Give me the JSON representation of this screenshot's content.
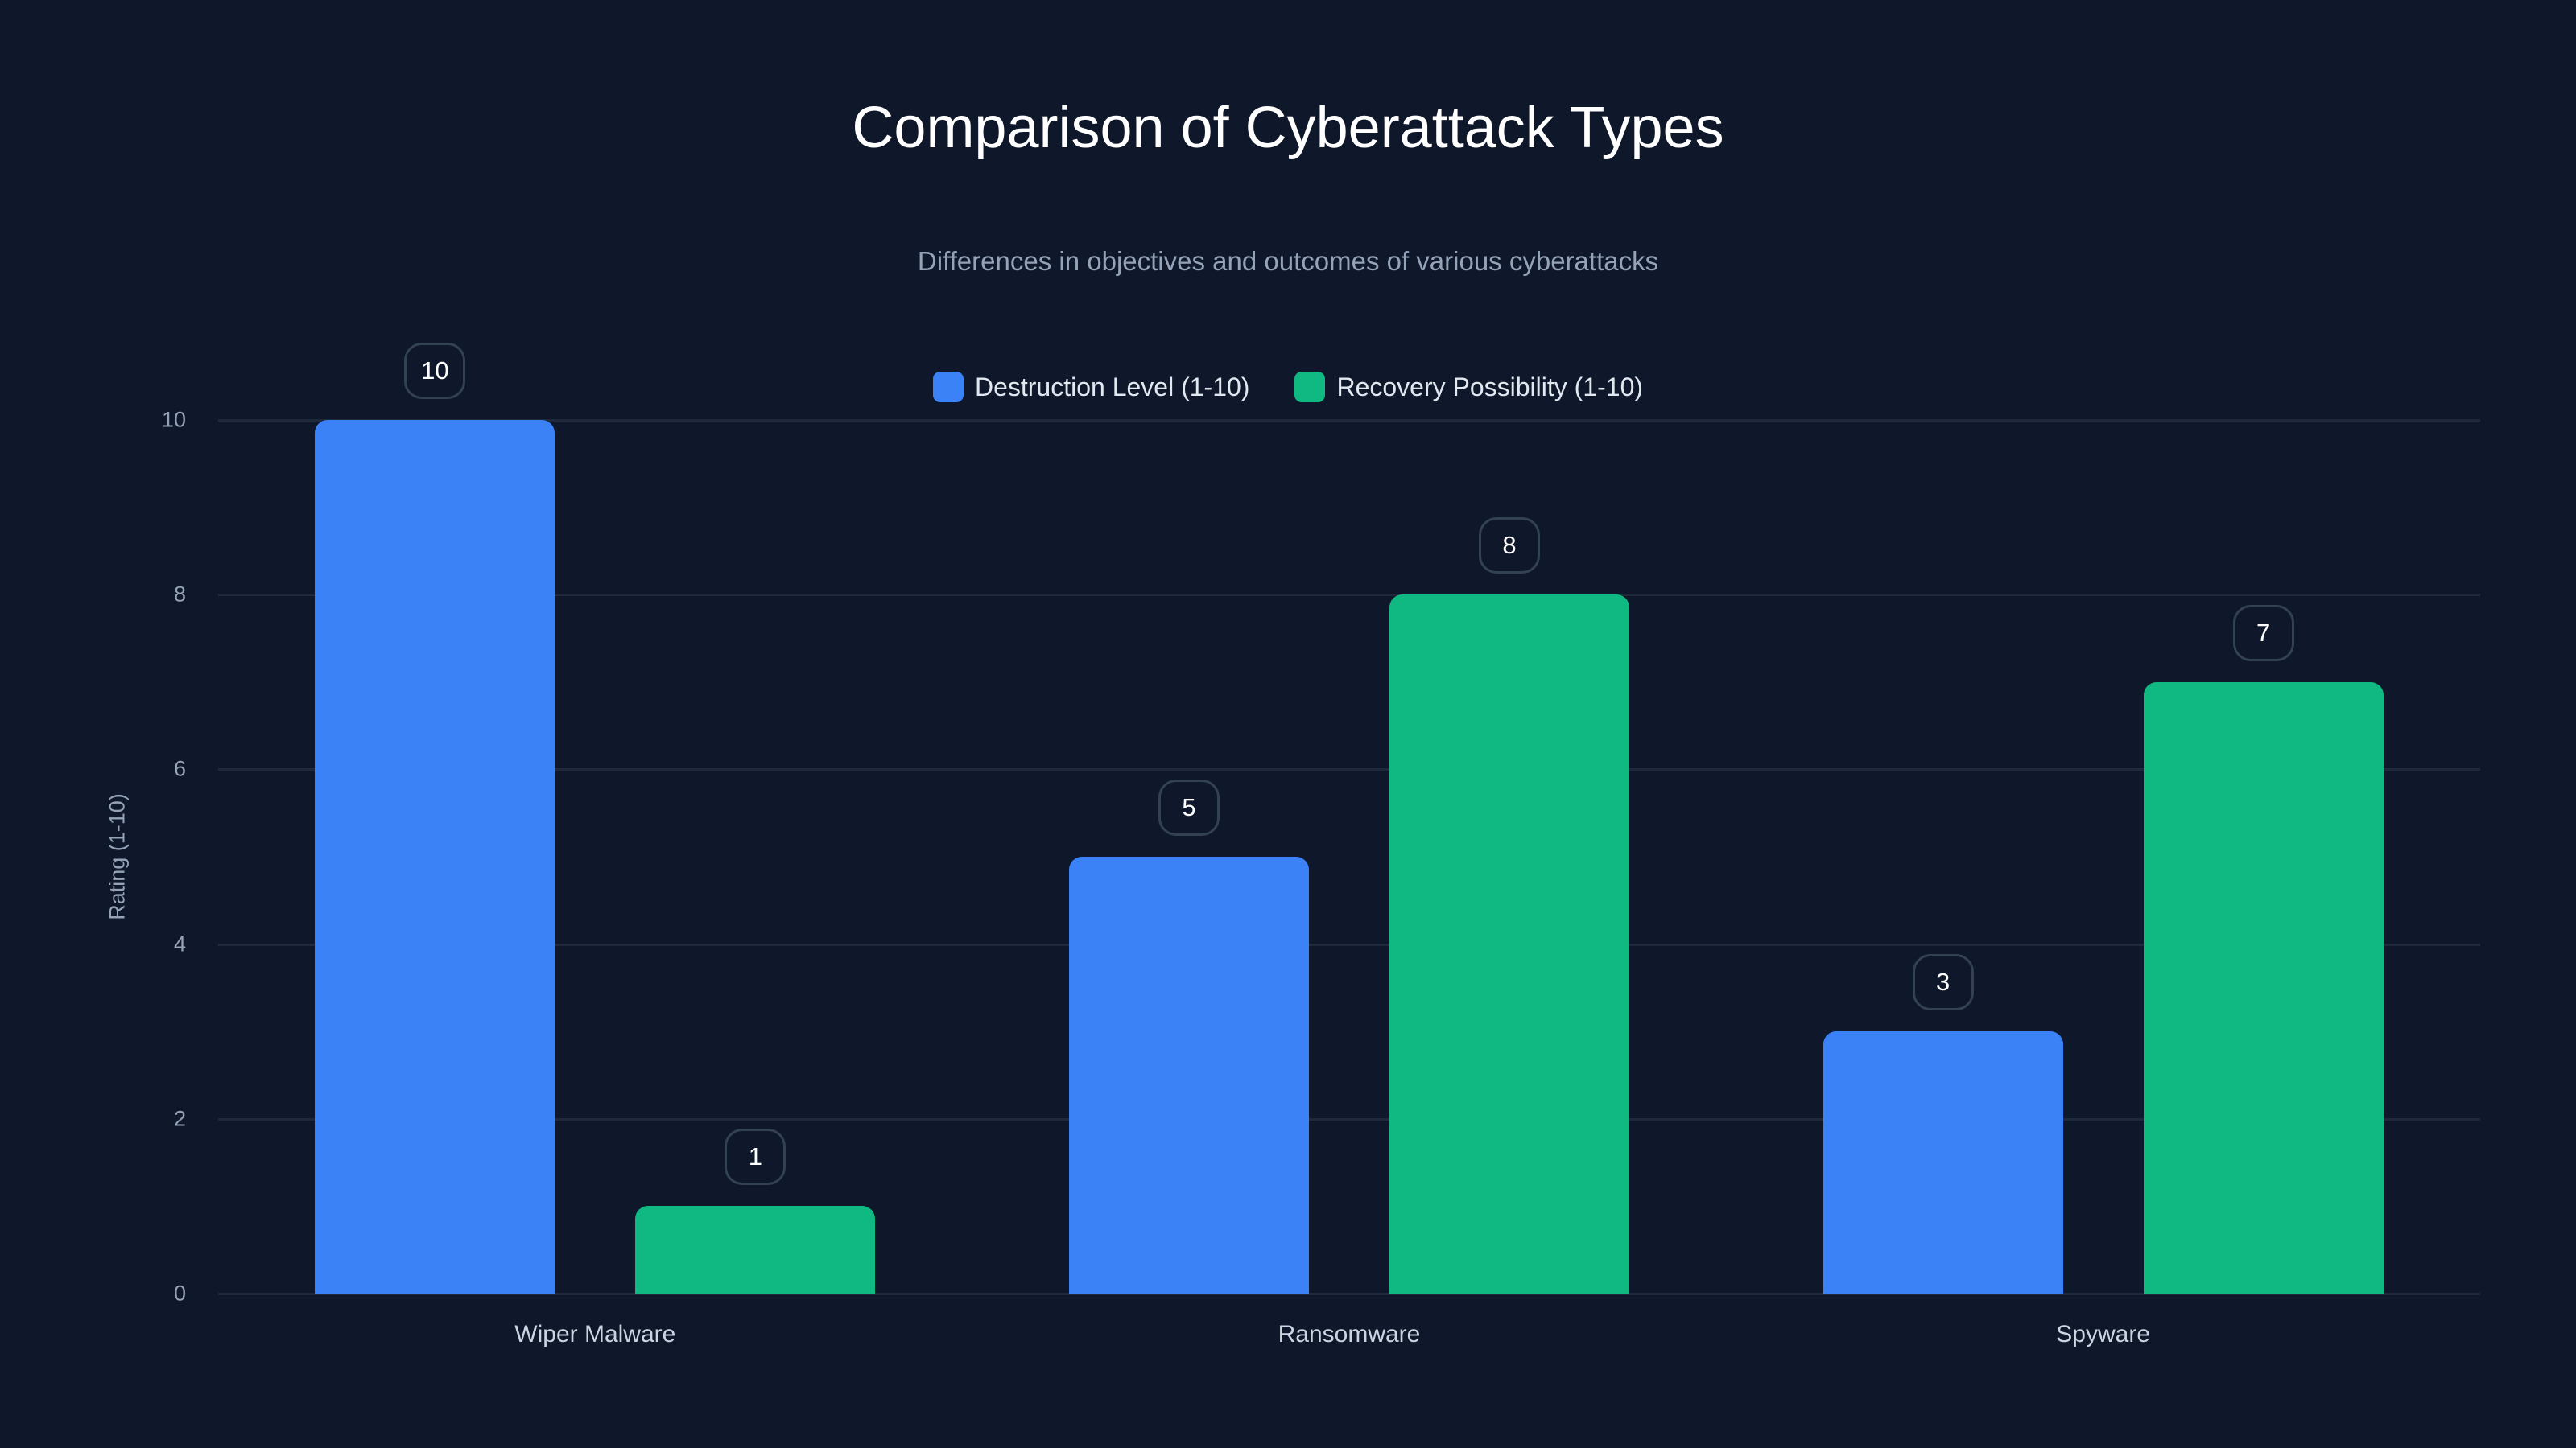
{
  "title": "Comparison of Cyberattack Types",
  "subtitle": "Differences in objectives and outcomes of various cyberattacks",
  "legend": [
    {
      "label": "Destruction Level (1-10)",
      "color": "#3b82f6"
    },
    {
      "label": "Recovery Possibility (1-10)",
      "color": "#10b981"
    }
  ],
  "y_axis": {
    "label": "Rating (1-10)",
    "ticks": [
      "0",
      "2",
      "4",
      "6",
      "8",
      "10"
    ]
  },
  "chart_data": {
    "type": "bar",
    "title": "Comparison of Cyberattack Types",
    "subtitle": "Differences in objectives and outcomes of various cyberattacks",
    "categories": [
      "Wiper Malware",
      "Ransomware",
      "Spyware"
    ],
    "series": [
      {
        "name": "Destruction Level (1-10)",
        "color": "#3b82f6",
        "values": [
          10,
          5,
          3
        ]
      },
      {
        "name": "Recovery Possibility (1-10)",
        "color": "#10b981",
        "values": [
          1,
          8,
          7
        ]
      }
    ],
    "xlabel": "",
    "ylabel": "Rating (1-10)",
    "ylim": [
      0,
      10
    ],
    "yticks": [
      0,
      2,
      4,
      6,
      8,
      10
    ],
    "grid": true,
    "legend_position": "top"
  }
}
